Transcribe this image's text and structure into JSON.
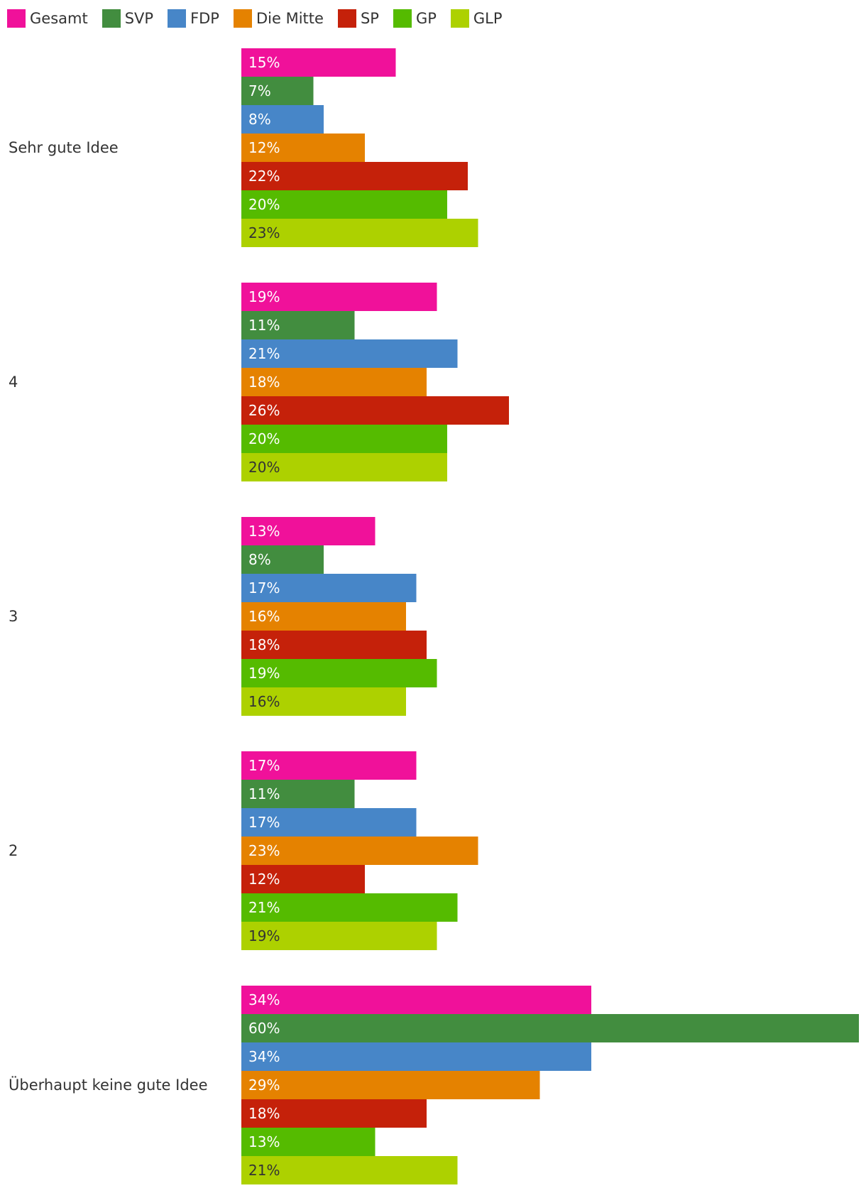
{
  "chart_data": {
    "type": "bar",
    "orientation": "horizontal",
    "categories": [
      "Sehr gute Idee",
      "4",
      "3",
      "2",
      "Überhaupt keine gute Idee"
    ],
    "series": [
      {
        "name": "Gesamt",
        "color": "#f0119a",
        "label_color": "#ffffff",
        "values": [
          15,
          19,
          13,
          17,
          34
        ]
      },
      {
        "name": "SVP",
        "color": "#428d3f",
        "label_color": "#ffffff",
        "values": [
          7,
          11,
          8,
          11,
          60
        ]
      },
      {
        "name": "FDP",
        "color": "#4786c8",
        "label_color": "#ffffff",
        "values": [
          8,
          21,
          17,
          17,
          34
        ]
      },
      {
        "name": "Die Mitte",
        "color": "#e58200",
        "label_color": "#ffffff",
        "values": [
          12,
          18,
          16,
          23,
          29
        ]
      },
      {
        "name": "SP",
        "color": "#c5210a",
        "label_color": "#ffffff",
        "values": [
          22,
          26,
          18,
          12,
          18
        ]
      },
      {
        "name": "GP",
        "color": "#55bb00",
        "label_color": "#ffffff",
        "values": [
          20,
          20,
          19,
          21,
          13
        ]
      },
      {
        "name": "GLP",
        "color": "#add100",
        "label_color": "#333333",
        "values": [
          23,
          20,
          16,
          19,
          21
        ]
      }
    ],
    "value_suffix": "%",
    "xlim": [
      0,
      60
    ],
    "grid": false,
    "legend_position": "top-left"
  }
}
